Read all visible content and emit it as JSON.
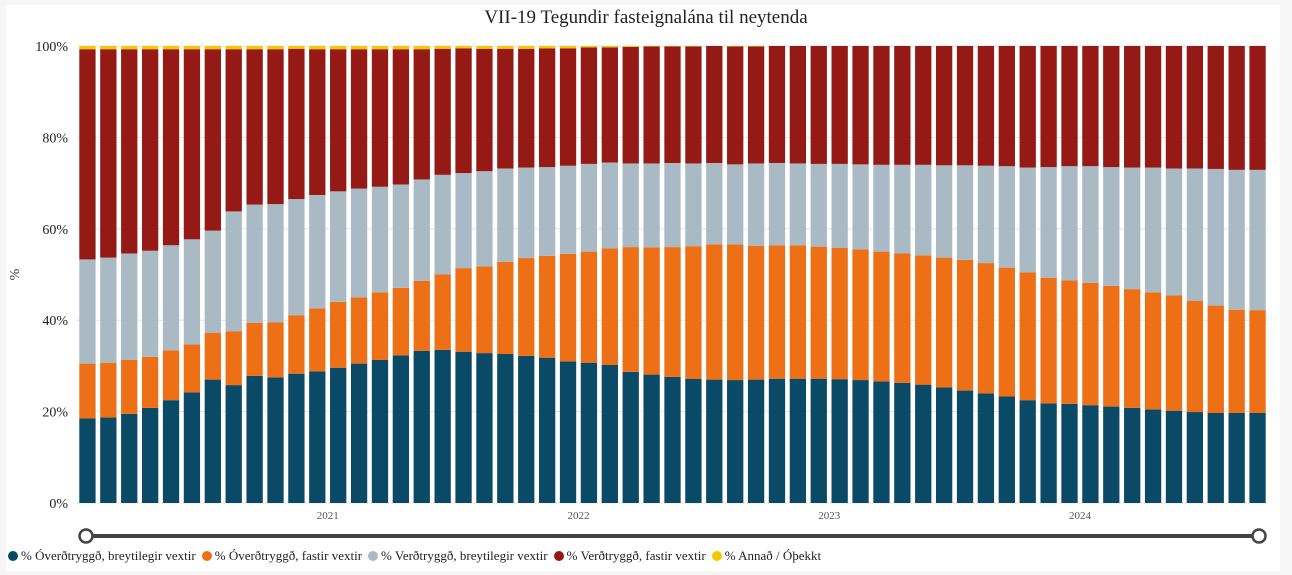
{
  "chart_data": {
    "type": "bar",
    "stacked": true,
    "title": "VII-19 Tegundir fasteignalána til neytenda",
    "xlabel": "",
    "ylabel": "%",
    "ylim": [
      0,
      100
    ],
    "y_ticks": [
      "0%",
      "20%",
      "40%",
      "60%",
      "80%",
      "100%"
    ],
    "x_ticks": [
      {
        "label": "2021",
        "index": 11.5
      },
      {
        "label": "2022",
        "index": 23.5
      },
      {
        "label": "2023",
        "index": 35.5
      },
      {
        "label": "2024",
        "index": 47.5
      }
    ],
    "n_periods": 57,
    "series": [
      {
        "name": "% Óverðtryggð, breytilegir vextir",
        "color": "#0b4a66",
        "values": [
          18.5,
          18.7,
          19.5,
          20.8,
          22.5,
          24.2,
          27.0,
          25.8,
          27.8,
          27.5,
          28.3,
          28.8,
          29.6,
          30.5,
          31.3,
          32.3,
          33.3,
          33.5,
          33.1,
          32.8,
          32.6,
          32.2,
          31.8,
          31.0,
          30.7,
          30.2,
          28.7,
          28.1,
          27.6,
          27.2,
          27.0,
          26.9,
          27.0,
          27.2,
          27.2,
          27.2,
          27.1,
          26.9,
          26.6,
          26.3,
          25.9,
          25.3,
          24.6,
          24.0,
          23.3,
          22.5,
          21.8,
          21.7,
          21.4,
          21.1,
          20.8,
          20.5,
          20.2,
          19.9,
          19.7,
          19.7,
          19.7
        ]
      },
      {
        "name": "% Óverðtryggð, fastir vextir",
        "color": "#ed7017",
        "values": [
          12.0,
          12.0,
          11.8,
          11.2,
          10.9,
          10.5,
          10.2,
          11.8,
          11.6,
          12.0,
          12.8,
          13.8,
          14.4,
          14.5,
          14.8,
          14.8,
          15.3,
          16.5,
          18.3,
          19.0,
          20.2,
          21.4,
          22.3,
          23.5,
          24.3,
          25.5,
          27.3,
          27.8,
          28.4,
          29.0,
          29.6,
          29.7,
          29.3,
          29.2,
          29.2,
          28.9,
          28.7,
          28.6,
          28.4,
          28.3,
          28.3,
          28.4,
          28.6,
          28.5,
          28.2,
          28.0,
          27.5,
          27.0,
          26.8,
          26.4,
          26.0,
          25.6,
          25.2,
          24.3,
          23.5,
          22.6,
          22.5
        ]
      },
      {
        "name": "% Verðtryggð, breytilegir vextir",
        "color": "#a9bac5",
        "values": [
          22.8,
          23.0,
          23.3,
          23.2,
          23.0,
          23.0,
          22.4,
          26.2,
          25.9,
          25.9,
          25.4,
          24.8,
          24.2,
          23.8,
          23.1,
          22.6,
          22.2,
          21.8,
          20.8,
          20.8,
          20.4,
          19.8,
          19.4,
          19.3,
          19.2,
          18.8,
          18.3,
          18.4,
          18.4,
          18.1,
          17.8,
          17.5,
          18.0,
          18.0,
          17.9,
          18.1,
          18.4,
          18.6,
          19.0,
          19.4,
          19.8,
          20.2,
          20.7,
          21.3,
          22.2,
          22.9,
          24.2,
          25.0,
          25.5,
          26.0,
          26.6,
          27.3,
          27.8,
          29.0,
          29.9,
          30.6,
          30.7
        ]
      },
      {
        "name": "% Verðtryggð, fastir vextir",
        "color": "#951a15",
        "values": [
          46.0,
          45.6,
          44.7,
          44.1,
          42.9,
          41.6,
          39.7,
          35.5,
          34.0,
          33.9,
          32.9,
          31.9,
          31.1,
          30.5,
          30.1,
          29.6,
          28.5,
          27.6,
          27.3,
          26.8,
          26.2,
          26.0,
          26.0,
          25.7,
          25.5,
          25.2,
          25.5,
          25.6,
          25.5,
          25.6,
          25.6,
          25.8,
          25.6,
          25.6,
          25.7,
          25.8,
          25.8,
          25.9,
          26.0,
          26.0,
          26.0,
          26.1,
          26.1,
          26.2,
          26.3,
          26.6,
          26.5,
          26.3,
          26.3,
          26.5,
          26.6,
          26.6,
          26.8,
          26.8,
          26.9,
          27.1,
          27.1
        ]
      },
      {
        "name": "% Annað / Óþekkt",
        "color": "#f5c800",
        "values": [
          0.7,
          0.7,
          0.7,
          0.7,
          0.7,
          0.7,
          0.7,
          0.7,
          0.7,
          0.7,
          0.6,
          0.7,
          0.7,
          0.7,
          0.7,
          0.7,
          0.7,
          0.6,
          0.5,
          0.6,
          0.6,
          0.6,
          0.5,
          0.5,
          0.3,
          0.3,
          0.2,
          0.1,
          0.1,
          0.1,
          0.0,
          0.1,
          0.1,
          0.0,
          0.0,
          0.0,
          0.0,
          0.0,
          0.0,
          0.0,
          0.0,
          0.0,
          0.0,
          0.0,
          0.0,
          0.0,
          0.0,
          0.0,
          0.0,
          0.0,
          0.0,
          0.0,
          0.0,
          0.0,
          0.0,
          0.0,
          0.0
        ]
      }
    ]
  }
}
